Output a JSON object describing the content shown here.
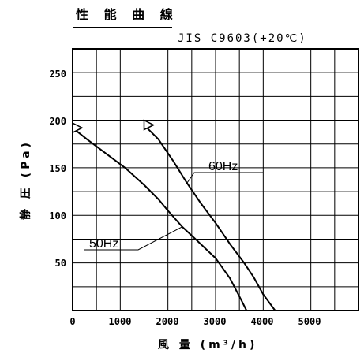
{
  "chart_data": {
    "type": "line",
    "title": "性 能 曲 線",
    "subtitle": "JIS C9603(+20℃)",
    "xlabel": "風 量 (m³/h)",
    "ylabel": "静 圧 (Pa)",
    "xlim": [
      0,
      6000
    ],
    "ylim": [
      0,
      275
    ],
    "x_ticks": [
      "0",
      "1000",
      "2000",
      "3000",
      "4000",
      "5000"
    ],
    "y_ticks": [
      "50",
      "100",
      "150",
      "200",
      "250"
    ],
    "grid": true,
    "series": [
      {
        "name": "60Hz",
        "points": [
          [
            1500,
            195
          ],
          [
            1800,
            180
          ],
          [
            2100,
            158
          ],
          [
            2400,
            134
          ],
          [
            2700,
            112
          ],
          [
            3000,
            92
          ],
          [
            3300,
            70
          ],
          [
            3600,
            50
          ],
          [
            3800,
            35
          ],
          [
            4000,
            17
          ],
          [
            4250,
            0
          ]
        ]
      },
      {
        "name": "50Hz",
        "points": [
          [
            0,
            192
          ],
          [
            300,
            180
          ],
          [
            700,
            165
          ],
          [
            1100,
            150
          ],
          [
            1500,
            132
          ],
          [
            1800,
            117
          ],
          [
            2000,
            105
          ],
          [
            2300,
            88
          ],
          [
            2600,
            74
          ],
          [
            3000,
            55
          ],
          [
            3300,
            34
          ],
          [
            3550,
            10
          ],
          [
            3650,
            0
          ]
        ]
      }
    ]
  }
}
